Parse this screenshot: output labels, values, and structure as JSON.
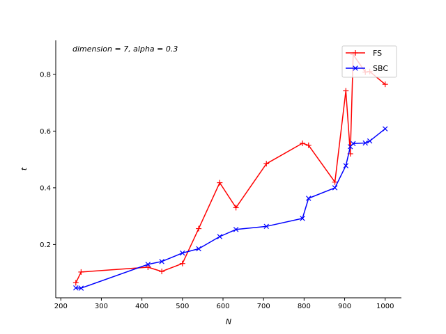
{
  "chart_data": {
    "type": "line",
    "title": "",
    "annotation": "dimension = 7, alpha = 0.3",
    "xlabel": "N",
    "ylabel": "t",
    "xlim": [
      187.5,
      1040
    ],
    "ylim": [
      0.012,
      0.92
    ],
    "xticks": [
      200,
      300,
      400,
      500,
      600,
      700,
      800,
      900,
      1000
    ],
    "yticks": [
      0.2,
      0.4,
      0.6,
      0.8
    ],
    "xtick_labels": [
      "200",
      "300",
      "400",
      "500",
      "600",
      "700",
      "800",
      "900",
      "1000"
    ],
    "ytick_labels": [
      "0.2",
      "0.4",
      "0.6",
      "0.8"
    ],
    "grid": false,
    "legend_position": "top-right",
    "series": [
      {
        "name": "FS",
        "color": "#ff0000",
        "marker": "plus",
        "points": [
          [
            237,
            0.065
          ],
          [
            250,
            0.103
          ],
          [
            415,
            0.12
          ],
          [
            449,
            0.105
          ],
          [
            500,
            0.133
          ],
          [
            540,
            0.256
          ],
          [
            592,
            0.418
          ],
          [
            632,
            0.33
          ],
          [
            707,
            0.485
          ],
          [
            796,
            0.557
          ],
          [
            811,
            0.55
          ],
          [
            876,
            0.42
          ],
          [
            903,
            0.742
          ],
          [
            914,
            0.52
          ],
          [
            921,
            0.87
          ],
          [
            951,
            0.808
          ],
          [
            962,
            0.81
          ],
          [
            1000,
            0.765
          ]
        ]
      },
      {
        "name": "SBC",
        "color": "#0000ff",
        "marker": "x",
        "points": [
          [
            237,
            0.047
          ],
          [
            250,
            0.046
          ],
          [
            415,
            0.13
          ],
          [
            449,
            0.14
          ],
          [
            500,
            0.17
          ],
          [
            540,
            0.185
          ],
          [
            592,
            0.228
          ],
          [
            632,
            0.253
          ],
          [
            707,
            0.264
          ],
          [
            796,
            0.292
          ],
          [
            811,
            0.363
          ],
          [
            876,
            0.4
          ],
          [
            903,
            0.478
          ],
          [
            914,
            0.545
          ],
          [
            921,
            0.556
          ],
          [
            951,
            0.558
          ],
          [
            962,
            0.565
          ],
          [
            1000,
            0.608
          ]
        ]
      }
    ]
  }
}
